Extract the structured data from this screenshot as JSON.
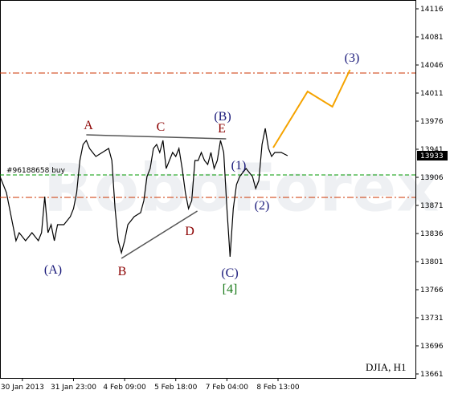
{
  "chart_data": {
    "type": "line",
    "title": "DJIA, H1",
    "watermark": "RoboForex",
    "color": "#000000",
    "x": [
      0,
      2,
      4,
      5,
      6,
      8,
      10,
      12,
      13,
      14,
      15,
      16,
      17,
      18,
      20,
      22,
      23,
      24,
      25,
      26,
      27,
      28,
      29,
      30,
      32,
      34,
      35,
      36,
      37,
      38,
      39,
      40,
      42,
      44,
      45,
      46,
      47,
      48,
      49,
      50,
      51,
      52,
      53,
      54,
      55,
      56,
      57,
      58,
      59,
      60,
      61,
      62,
      63,
      64,
      65,
      66,
      67,
      68,
      69,
      70,
      71,
      72,
      73,
      74,
      75,
      76,
      77,
      78,
      79,
      80,
      81,
      82,
      83,
      84,
      85,
      86,
      87,
      88,
      89,
      90
    ],
    "values": [
      13907,
      13887,
      13847,
      13827,
      13837,
      13827,
      13837,
      13827,
      13837,
      13882,
      13837,
      13847,
      13827,
      13847,
      13847,
      13857,
      13867,
      13887,
      13927,
      13947,
      13952,
      13942,
      13937,
      13932,
      13937,
      13942,
      13927,
      13867,
      13827,
      13812,
      13827,
      13847,
      13857,
      13862,
      13877,
      13907,
      13917,
      13942,
      13947,
      13937,
      13952,
      13917,
      13927,
      13937,
      13932,
      13942,
      13917,
      13887,
      13867,
      13877,
      13927,
      13927,
      13937,
      13927,
      13922,
      13937,
      13917,
      13927,
      13952,
      13937,
      13867,
      13807,
      13867,
      13897,
      13907,
      13912,
      13917,
      13912,
      13907,
      13892,
      13902,
      13947,
      13967,
      13942,
      13932,
      13937,
      13937,
      13937,
      13935,
      13933
    ],
    "last_price": 13933,
    "forecast": {
      "color": "#f5a300",
      "x": [
        85.5,
        96.25,
        104,
        109.5
      ],
      "values": [
        13943,
        14013,
        13994,
        14040
      ]
    },
    "trendlines": [
      {
        "color": "#555555",
        "x": [
          27,
          70.75
        ],
        "values": [
          13959,
          13954
        ]
      },
      {
        "color": "#555555",
        "x": [
          38,
          61.75
        ],
        "values": [
          13805,
          13864
        ]
      }
    ],
    "hlines": [
      {
        "value": 14036,
        "color": "#cc3300",
        "style": "dashdot"
      },
      {
        "value": 13909,
        "color": "#009900",
        "style": "dashed",
        "label": "#96188658 buy"
      },
      {
        "value": 13881,
        "color": "#cc3300",
        "style": "dashdot"
      }
    ],
    "annotations": [
      {
        "text": "A",
        "color": "#8b0000"
      },
      {
        "text": "B",
        "color": "#8b0000"
      },
      {
        "text": "C",
        "color": "#8b0000"
      },
      {
        "text": "D",
        "color": "#8b0000"
      },
      {
        "text": "E",
        "color": "#8b0000"
      },
      {
        "text": "(B)",
        "color": "#1a1a7a"
      },
      {
        "text": "(A)",
        "color": "#1a1a7a"
      },
      {
        "text": "(C)",
        "color": "#1a1a7a"
      },
      {
        "text": "[4]",
        "color": "#1a7a1a"
      },
      {
        "text": "(1)",
        "color": "#1a1a7a"
      },
      {
        "text": "(2)",
        "color": "#1a1a7a"
      },
      {
        "text": "(3)",
        "color": "#1a1a7a"
      }
    ],
    "xlim": [
      0,
      130
    ],
    "xticks": [
      {
        "value": 7,
        "label": "30 Jan 2013"
      },
      {
        "value": 23,
        "label": "31 Jan 23:00"
      },
      {
        "value": 39,
        "label": "4 Feb 09:00"
      },
      {
        "value": 55,
        "label": "5 Feb 18:00"
      },
      {
        "value": 71,
        "label": "7 Feb 04:00"
      },
      {
        "value": 87,
        "label": "8 Feb 13:00"
      }
    ],
    "ylim": [
      13656,
      14127
    ],
    "yticks": [
      13661,
      13696,
      13731,
      13766,
      13801,
      13836,
      13871,
      13906,
      13941,
      13976,
      14011,
      14046,
      14081,
      14116
    ]
  }
}
